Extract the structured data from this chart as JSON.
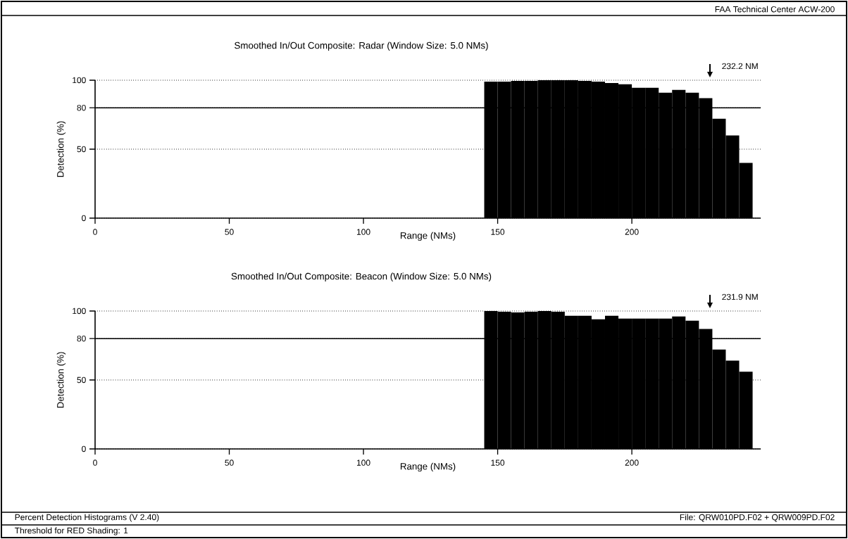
{
  "chart_data": [
    {
      "type": "histogram",
      "title": "Smoothed In/Out Composite:  Radar     (Window Size:  5.0 NMs)",
      "xlabel": "Range  (NMs)",
      "ylabel": "Detection  (%)",
      "bins": [
        145,
        150,
        155,
        160,
        165,
        170,
        175,
        180,
        185,
        190,
        195,
        200,
        205,
        210,
        215,
        220,
        225,
        230,
        235,
        240,
        245
      ],
      "values": [
        99,
        99,
        99.5,
        99.5,
        100,
        100,
        100,
        99.5,
        99,
        98,
        97,
        94.5,
        94.5,
        91,
        93,
        91,
        87,
        72,
        60,
        40
      ],
      "color": "#000000",
      "xlim": [
        0,
        248
      ],
      "ylim": [
        0,
        100
      ],
      "xticks": [
        0,
        50,
        100,
        150,
        200
      ],
      "yticks": [
        0,
        50,
        80,
        100
      ],
      "grid": "y",
      "ref_lines": [
        {
          "axis": "y",
          "value": 80,
          "color": "#000000"
        }
      ],
      "annotations": [
        "232.2  NM",
        "FAA Technical Center   ACW-200"
      ]
    },
    {
      "type": "histogram",
      "title": "Smoothed In/Out Composite:  Beacon     (Window Size:  5.0 NMs)",
      "xlabel": "Range  (NMs)",
      "ylabel": "Detection  (%)",
      "bins": [
        145,
        150,
        155,
        160,
        165,
        170,
        175,
        180,
        185,
        190,
        195,
        200,
        205,
        210,
        215,
        220,
        225,
        230,
        235,
        240,
        245
      ],
      "values": [
        100,
        99.5,
        99,
        99.5,
        100,
        99.5,
        96.5,
        96.5,
        94,
        96.5,
        94.5,
        94.5,
        94.5,
        94.5,
        96,
        93,
        87,
        72,
        64,
        56
      ],
      "color": "#000000",
      "xlim": [
        0,
        248
      ],
      "ylim": [
        0,
        100
      ],
      "xticks": [
        0,
        50,
        100,
        150,
        200
      ],
      "yticks": [
        0,
        50,
        80,
        100
      ],
      "grid": "y",
      "ref_lines": [
        {
          "axis": "y",
          "value": 80,
          "color": "#000000"
        }
      ],
      "annotations": [
        "231.9  NM",
        "Percent Detection Histograms  (V 2.40)",
        "File:  QRW010PD.F02 + QRW009PD.F02",
        "Threshold for RED Shading:     1"
      ]
    }
  ]
}
